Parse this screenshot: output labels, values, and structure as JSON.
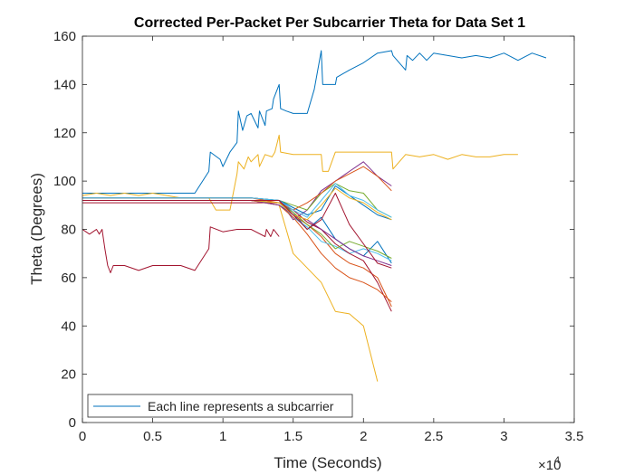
{
  "chart_data": {
    "type": "line",
    "title": "Corrected Per-Packet Per Subcarrier Theta for Data Set 1",
    "xlabel": "Time (Seconds)",
    "ylabel": "Theta (Degrees)",
    "xlim": [
      0,
      35000
    ],
    "ylim": [
      0,
      160
    ],
    "x_ticks": [
      0,
      5000,
      10000,
      15000,
      20000,
      25000,
      30000,
      35000
    ],
    "x_tick_labels": [
      "0",
      "0.5",
      "1",
      "1.5",
      "2",
      "2.5",
      "3",
      "3.5"
    ],
    "x_exponent_label": "×10",
    "x_exponent_power": "4",
    "y_ticks": [
      0,
      20,
      40,
      60,
      80,
      100,
      120,
      140,
      160
    ],
    "y_tick_labels": [
      "0",
      "20",
      "40",
      "60",
      "80",
      "100",
      "120",
      "140",
      "160"
    ],
    "grid": false,
    "legend": {
      "entry": "Each line represents a subcarrier",
      "placement": "bottom-left"
    },
    "series": [
      {
        "color": "#0072BD",
        "x": [
          0,
          2000,
          4000,
          6000,
          7000,
          8000,
          9000,
          9100,
          9800,
          10000,
          10500,
          11000,
          11100,
          11400,
          11700,
          12000,
          12500,
          12600,
          13000,
          13100,
          13500,
          13600,
          14000,
          14100,
          14500,
          15000,
          16000,
          16500,
          17000,
          17100,
          17500,
          18000,
          18100,
          19000,
          20000,
          21000,
          22000,
          22100,
          23000,
          23100,
          23500,
          24000,
          24500,
          25000,
          26000,
          27000,
          28000,
          29000,
          30000,
          31000,
          32000,
          33000
        ],
        "y": [
          95,
          95,
          95,
          95,
          95,
          95,
          104,
          112,
          109,
          106,
          112,
          116,
          129,
          121,
          127,
          128,
          122,
          129,
          123,
          129,
          130,
          134,
          140,
          130,
          129,
          128,
          128,
          138,
          154,
          140,
          140,
          140,
          143,
          146,
          149,
          153,
          154,
          152,
          146,
          152,
          150,
          153,
          150,
          153,
          152,
          151,
          152,
          151,
          153,
          150,
          153,
          151
        ]
      },
      {
        "color": "#EDB120",
        "x": [
          0,
          1000,
          2000,
          3000,
          4000,
          5000,
          6000,
          7000,
          8000,
          9000,
          9500,
          10000,
          10500,
          11000,
          11100,
          11500,
          11800,
          12000,
          12500,
          12600,
          13000,
          13500,
          13700,
          14000,
          14100,
          15000,
          16000,
          17000,
          17100,
          17500,
          18000,
          19000,
          20000,
          21000,
          22000,
          22100,
          23000,
          24000,
          25000,
          26000,
          27000,
          28000,
          29000,
          30000,
          31000
        ],
        "y": [
          94,
          95,
          94,
          95,
          94,
          95,
          94,
          93,
          93,
          93,
          88,
          88,
          88,
          103,
          108,
          105,
          110,
          108,
          111,
          106,
          111,
          110,
          112,
          119,
          112,
          111,
          111,
          111,
          104,
          104,
          112,
          112,
          112,
          112,
          112,
          105,
          111,
          110,
          111,
          109,
          111,
          110,
          110,
          111,
          111
        ]
      },
      {
        "color": "#A2142F",
        "x": [
          0,
          500,
          1000,
          1200,
          1400,
          1600,
          1800,
          2000,
          2200,
          3000,
          4000,
          5000,
          6000,
          7000,
          8000,
          9000,
          9100,
          10000,
          11000,
          12000,
          13000,
          13100,
          13400,
          13600,
          14000
        ],
        "y": [
          80,
          78,
          80,
          78,
          80,
          72,
          65,
          62,
          65,
          65,
          63,
          65,
          65,
          65,
          63,
          72,
          81,
          79,
          80,
          80,
          77,
          80,
          77,
          80,
          77
        ]
      },
      {
        "color": "#0072BD",
        "x": [
          0,
          4000,
          8000,
          12000,
          14000,
          15000,
          16000,
          17000,
          18000,
          19000,
          20000,
          21000,
          22000
        ],
        "y": [
          92,
          92,
          92,
          92,
          92,
          87,
          80,
          85,
          76,
          72,
          69,
          75,
          66
        ]
      },
      {
        "color": "#D95319",
        "x": [
          0,
          4000,
          8000,
          12000,
          14000,
          15000,
          16000,
          17000,
          18000,
          19000,
          20000,
          21000,
          22000
        ],
        "y": [
          92,
          92,
          92,
          92,
          91,
          86,
          82,
          77,
          70,
          66,
          64,
          60,
          48
        ]
      },
      {
        "color": "#7E2F8E",
        "x": [
          0,
          4000,
          8000,
          12000,
          14000,
          15000,
          16000,
          17000,
          18000,
          19000,
          20000,
          21000,
          22000
        ],
        "y": [
          93,
          93,
          93,
          93,
          92,
          84,
          88,
          96,
          100,
          104,
          108,
          102,
          98
        ]
      },
      {
        "color": "#77AC30",
        "x": [
          0,
          4000,
          8000,
          12000,
          14000,
          15000,
          16000,
          17000,
          18000,
          19000,
          20000,
          21000,
          22000
        ],
        "y": [
          93,
          93,
          93,
          93,
          92,
          90,
          88,
          95,
          99,
          96,
          95,
          88,
          85
        ]
      },
      {
        "color": "#4DBEEE",
        "x": [
          0,
          4000,
          8000,
          12000,
          14000,
          15000,
          16000,
          17000,
          18000,
          19000,
          20000,
          21000,
          22000
        ],
        "y": [
          92,
          92,
          92,
          92,
          91,
          85,
          81,
          75,
          73,
          70,
          72,
          70,
          67
        ]
      },
      {
        "color": "#A2142F",
        "x": [
          0,
          4000,
          8000,
          12000,
          14000,
          15000,
          16000,
          17000,
          18000,
          19000,
          20000,
          21000,
          22000
        ],
        "y": [
          91,
          91,
          91,
          91,
          91,
          88,
          83,
          80,
          74,
          70,
          67,
          58,
          46
        ]
      },
      {
        "color": "#EDB120",
        "x": [
          0,
          4000,
          8000,
          12000,
          14000,
          14500,
          15000,
          16000,
          17000,
          18000,
          19000,
          20000,
          21000
        ],
        "y": [
          92,
          92,
          92,
          92,
          90,
          80,
          70,
          64,
          58,
          46,
          45,
          40,
          17
        ]
      },
      {
        "color": "#D95319",
        "x": [
          0,
          4000,
          8000,
          12000,
          14000,
          15000,
          16000,
          17000,
          18000,
          19000,
          20000,
          21000,
          22000
        ],
        "y": [
          92,
          92,
          92,
          92,
          90,
          85,
          78,
          70,
          64,
          60,
          58,
          55,
          50
        ]
      },
      {
        "color": "#0072BD",
        "x": [
          0,
          4000,
          8000,
          12000,
          14000,
          15000,
          16000,
          17000,
          18000,
          19000,
          20000,
          21000,
          22000
        ],
        "y": [
          93,
          93,
          93,
          93,
          92,
          89,
          86,
          88,
          98,
          94,
          90,
          86,
          84
        ]
      },
      {
        "color": "#77AC30",
        "x": [
          0,
          4000,
          8000,
          12000,
          14000,
          15000,
          16000,
          17000,
          18000,
          19000,
          20000,
          21000,
          22000
        ],
        "y": [
          92,
          92,
          92,
          92,
          91,
          87,
          82,
          78,
          72,
          75,
          73,
          71,
          68
        ]
      },
      {
        "color": "#7E2F8E",
        "x": [
          0,
          4000,
          8000,
          12000,
          14000,
          15000,
          16000,
          17000,
          18000,
          19000,
          20000,
          21000,
          22000
        ],
        "y": [
          92,
          92,
          92,
          92,
          90,
          86,
          84,
          80,
          76,
          72,
          69,
          67,
          65
        ]
      },
      {
        "color": "#D95319",
        "x": [
          0,
          4000,
          8000,
          12000,
          14000,
          15000,
          16000,
          17000,
          18000,
          19000,
          20000,
          21000,
          22000
        ],
        "y": [
          93,
          93,
          93,
          93,
          91,
          88,
          91,
          95,
          100,
          103,
          106,
          102,
          96
        ]
      },
      {
        "color": "#EDB120",
        "x": [
          0,
          4000,
          8000,
          12000,
          14000,
          15000,
          16000,
          17000,
          18000,
          19000,
          20000,
          21000,
          22000
        ],
        "y": [
          92,
          92,
          92,
          92,
          91,
          86,
          84,
          90,
          97,
          93,
          91,
          87,
          84
        ]
      },
      {
        "color": "#4DBEEE",
        "x": [
          0,
          4000,
          8000,
          12000,
          14000,
          15000,
          16000,
          17000,
          18000,
          19000,
          20000,
          21000,
          22000
        ],
        "y": [
          93,
          93,
          93,
          93,
          92,
          88,
          85,
          92,
          99,
          94,
          92,
          88,
          85
        ]
      },
      {
        "color": "#A2142F",
        "x": [
          0,
          4000,
          8000,
          12000,
          14000,
          15000,
          16000,
          17000,
          18000,
          19000,
          20000,
          21000,
          22000
        ],
        "y": [
          92,
          92,
          92,
          92,
          92,
          86,
          80,
          84,
          95,
          82,
          74,
          66,
          64
        ]
      }
    ]
  }
}
